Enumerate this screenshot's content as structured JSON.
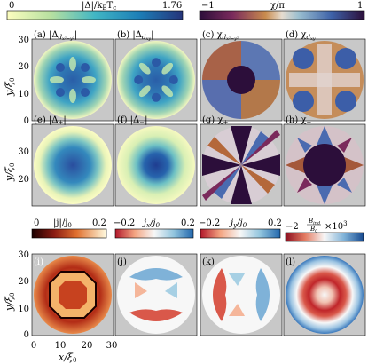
{
  "colorbars": {
    "cb1": {
      "min": "0",
      "max": "1.76",
      "label": "|Δ|/k",
      "label_sub": "B",
      "label_tail": "T",
      "label_tail_sub": "c"
    },
    "cb2": {
      "min": "−1",
      "max": "1",
      "label": "χ/π"
    },
    "cb3": {
      "min": "0",
      "max": "0.2",
      "label": "|j|/j",
      "label_sub": "0"
    },
    "cb4": {
      "min": "−0.2",
      "max": "0.2",
      "label": "j",
      "label_sub": "x",
      "label_tail": "/j",
      "label_tail_sub": "0"
    },
    "cb5": {
      "min": "−0.2",
      "max": "0.2",
      "label": "j",
      "label_sub": "y",
      "label_tail": "/j",
      "label_tail_sub": "0"
    },
    "cb6": {
      "min": "−2",
      "max": "×10",
      "max_sup": "3",
      "label_num": "B",
      "label_num_sub": "ind",
      "label_den": "B",
      "label_den_sub": "0"
    }
  },
  "panels": {
    "a": {
      "tag": "(a) |Δ",
      "sub": "d",
      "subsub": "x²−y²",
      "tail": "|"
    },
    "b": {
      "tag": "(b) |Δ",
      "sub": "d",
      "subsub": "xy",
      "tail": "|"
    },
    "c": {
      "tag": "(c) χ",
      "sub": "d",
      "subsub": "x²−y²"
    },
    "d": {
      "tag": "(d) χ",
      "sub": "d",
      "subsub": "xy"
    },
    "e": {
      "tag": "(e) |Δ",
      "sub": "+",
      "tail": "|"
    },
    "f": {
      "tag": "(f) |Δ",
      "sub": "−",
      "tail": "|"
    },
    "g": {
      "tag": "(g) χ",
      "sub": "+"
    },
    "h": {
      "tag": "(h) χ",
      "sub": "−"
    },
    "i": {
      "tag": "(i)"
    },
    "j": {
      "tag": "(j)"
    },
    "k": {
      "tag": "(k)"
    },
    "l": {
      "tag": "(l)"
    }
  },
  "axes": {
    "ylabel": "y/ξ",
    "ylabel_sub": "0",
    "xlabel": "x/ξ",
    "xlabel_sub": "0",
    "yticks": [
      "0",
      "10",
      "20",
      "30"
    ],
    "xticks": [
      "0",
      "10",
      "20",
      "30"
    ]
  },
  "colors": {
    "viridis_like": [
      "#fcfdbf",
      "#a6dba0",
      "#3fbcc0",
      "#1d7fb7",
      "#25479b"
    ],
    "twilight_like": [
      "#e3d7e0",
      "#c4965a",
      "#9a3a2c",
      "#2a0c36",
      "#3c5ea8",
      "#8fb3c6",
      "#e3d7e0"
    ],
    "heat": [
      "#fffbe0",
      "#f4c26c",
      "#d65c33",
      "#8b1c12",
      "#1a0000"
    ],
    "diverging": [
      "#b2182b",
      "#f4a582",
      "#f7f7f7",
      "#92c5de",
      "#2166ac"
    ],
    "panel_bg": "#c8c8c8"
  }
}
